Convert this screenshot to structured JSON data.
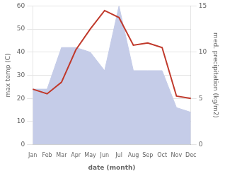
{
  "chart_data": {
    "type": "line",
    "categories": [
      "Jan",
      "Feb",
      "Mar",
      "Apr",
      "May",
      "Jun",
      "Jul",
      "Aug",
      "Sep",
      "Oct",
      "Nov",
      "Dec"
    ],
    "xlabel": "date (month)",
    "ylabel": "max temp (C)",
    "y2label": "med. precipitation (kg/m2)",
    "series": [
      {
        "type": "line",
        "color": "#c0392b",
        "values": [
          24,
          22,
          27,
          41,
          50,
          58,
          55,
          43,
          44,
          42,
          21,
          20
        ]
      },
      {
        "type": "area",
        "color": "#c5cce8",
        "axis": "y2",
        "values": [
          6,
          6,
          10.5,
          10.5,
          10,
          8,
          15,
          8,
          8,
          8,
          4,
          3.5
        ]
      }
    ],
    "ylim": [
      0,
      60
    ],
    "yticks": [
      0,
      10,
      20,
      30,
      40,
      50,
      60
    ],
    "y2lim": [
      0,
      15
    ],
    "y2ticks": [
      0,
      5,
      10,
      15
    ],
    "grid": true
  }
}
